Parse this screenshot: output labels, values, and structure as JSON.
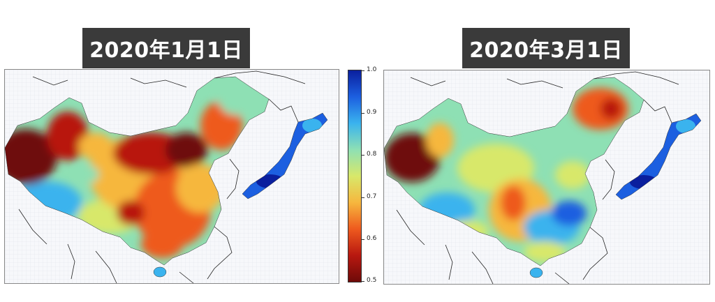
{
  "panels": [
    {
      "title": "2020年1月1日"
    },
    {
      "title": "2020年3月1日"
    }
  ],
  "colorbar": {
    "min": 0.5,
    "max": 1.0,
    "ticks": [
      "1.0",
      "0.9",
      "0.8",
      "0.7",
      "0.6",
      "0.5"
    ],
    "colors": [
      "#0a1f9e",
      "#1c5fe0",
      "#3ab3ee",
      "#8ee0b4",
      "#d8e86a",
      "#f6b73e",
      "#ee5a1e",
      "#b81810",
      "#6e0a08"
    ]
  }
}
